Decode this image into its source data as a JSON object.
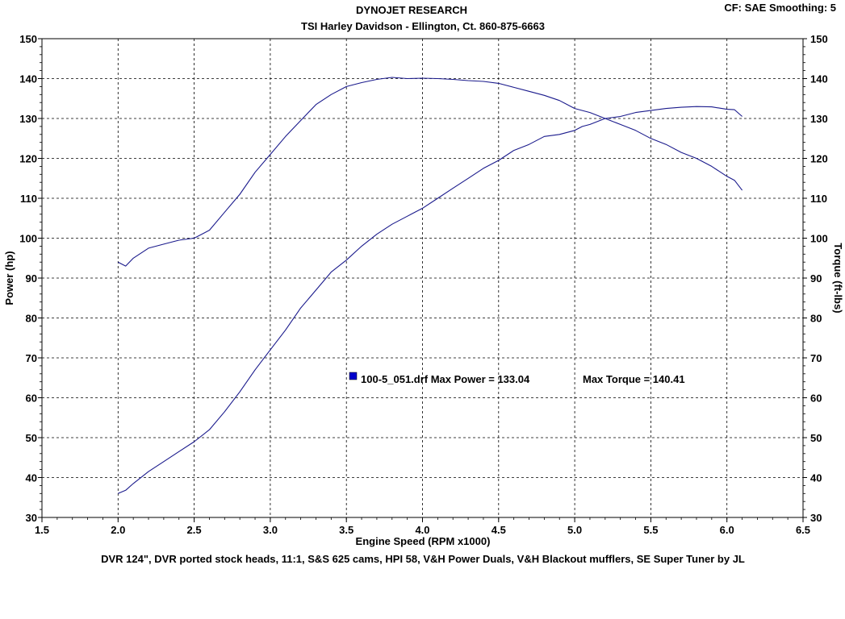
{
  "header": {
    "title": "DYNOJET RESEARCH",
    "subtitle": "TSI Harley Davidson - Ellington, Ct.  860-875-6663",
    "settings": "CF: SAE  Smoothing: 5"
  },
  "footer": {
    "notes": "DVR 124\", DVR ported stock heads, 11:1, S&S 625 cams, HPI 58, V&H Power Duals, V&H Blackout mufflers, SE Super Tuner by JL"
  },
  "legend": {
    "run_label": "100-5_051.drf Max Power = 133.04",
    "torque_label": "Max Torque = 140.41",
    "color": "#0000cc"
  },
  "chart_data": {
    "type": "line",
    "xlabel": "Engine Speed (RPM x1000)",
    "ylabel": "Power (hp)",
    "ylabel_right": "Torque (ft-lbs)",
    "xlim": [
      1.5,
      6.5
    ],
    "ylim": [
      30,
      150
    ],
    "ylim_right": [
      30,
      150
    ],
    "x_ticks": [
      "1.5",
      "2.0",
      "2.5",
      "3.0",
      "3.5",
      "4.0",
      "4.5",
      "5.0",
      "5.5",
      "6.0",
      "6.5"
    ],
    "y_ticks": [
      "30",
      "40",
      "50",
      "60",
      "70",
      "80",
      "90",
      "100",
      "110",
      "120",
      "130",
      "140",
      "150"
    ],
    "grid": true,
    "line_color": "#1a1a8c",
    "series": [
      {
        "axis": "left",
        "x": [
          2.0,
          2.05,
          2.1,
          2.2,
          2.3,
          2.4,
          2.5,
          2.6,
          2.7,
          2.8,
          2.9,
          3.0,
          3.1,
          3.2,
          3.3,
          3.4,
          3.5,
          3.6,
          3.7,
          3.8,
          3.9,
          4.0,
          4.1,
          4.2,
          4.3,
          4.4,
          4.5,
          4.6,
          4.7,
          4.8,
          4.9,
          5.0,
          5.05,
          5.1,
          5.2,
          5.3,
          5.4,
          5.5,
          5.6,
          5.7,
          5.8,
          5.9,
          5.95,
          6.0,
          6.05,
          6.1
        ],
        "values": [
          36.0,
          36.8,
          38.5,
          41.5,
          44.0,
          46.5,
          49.0,
          52.0,
          56.5,
          61.5,
          67.0,
          72.0,
          77.0,
          82.5,
          87.0,
          91.5,
          94.5,
          98.0,
          101.0,
          103.5,
          105.5,
          107.5,
          110.0,
          112.5,
          115.0,
          117.5,
          119.5,
          122.0,
          123.5,
          125.5,
          126.0,
          127.0,
          128.0,
          128.5,
          130.0,
          130.5,
          131.5,
          132.0,
          132.5,
          132.8,
          133.0,
          132.9,
          132.6,
          132.3,
          132.2,
          130.5
        ]
      },
      {
        "axis": "right",
        "x": [
          2.0,
          2.05,
          2.1,
          2.2,
          2.3,
          2.4,
          2.5,
          2.6,
          2.7,
          2.8,
          2.9,
          3.0,
          3.1,
          3.2,
          3.3,
          3.4,
          3.5,
          3.6,
          3.7,
          3.8,
          3.9,
          4.0,
          4.1,
          4.2,
          4.3,
          4.4,
          4.5,
          4.6,
          4.7,
          4.8,
          4.9,
          5.0,
          5.1,
          5.2,
          5.3,
          5.4,
          5.5,
          5.6,
          5.7,
          5.8,
          5.9,
          6.0,
          6.05,
          6.1
        ],
        "values": [
          94.0,
          93.0,
          95.0,
          97.5,
          98.5,
          99.5,
          100.0,
          102.0,
          106.5,
          111.0,
          116.5,
          121.0,
          125.5,
          129.5,
          133.5,
          136.0,
          138.0,
          139.0,
          139.8,
          140.3,
          140.0,
          140.1,
          140.0,
          139.8,
          139.5,
          139.3,
          138.8,
          137.8,
          136.8,
          135.8,
          134.5,
          132.5,
          131.5,
          130.0,
          128.5,
          127.0,
          125.0,
          123.5,
          121.5,
          120.0,
          118.0,
          115.5,
          114.5,
          112.0
        ]
      }
    ]
  }
}
